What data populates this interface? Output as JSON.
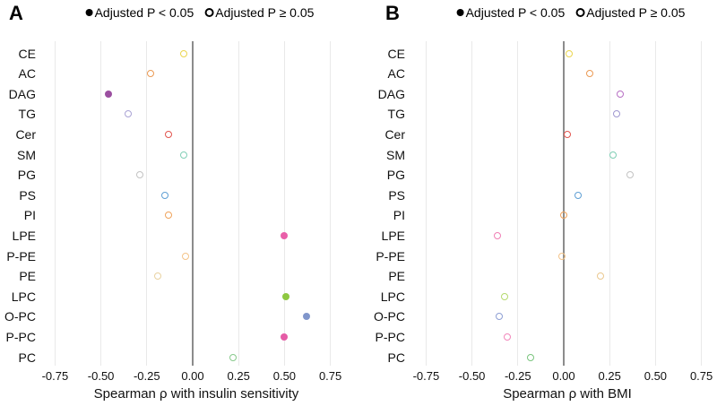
{
  "figure": {
    "background": "#ffffff",
    "grid_color": "#e9e9e9",
    "zero_line_color": "#8c8c8c"
  },
  "chart_data": [
    {
      "type": "scatter",
      "panel_label": "A",
      "legend": {
        "filled_label": "Adjusted P < 0.05",
        "open_label": "Adjusted P ≥ 0.05"
      },
      "title": "",
      "xlabel": "Spearman ρ with insulin sensitivity",
      "ylabel": "",
      "xlim": [
        -0.75,
        0.75
      ],
      "grid": true,
      "legend_position": "top",
      "x_ticks": [
        {
          "value": -0.75,
          "label": "-0.75"
        },
        {
          "value": -0.5,
          "label": "-0.50"
        },
        {
          "value": -0.25,
          "label": "-0.25"
        },
        {
          "value": 0.0,
          "label": "0.00"
        },
        {
          "value": 0.25,
          "label": "0.25"
        },
        {
          "value": 0.5,
          "label": "0.50"
        },
        {
          "value": 0.75,
          "label": "0.75"
        }
      ],
      "categories": [
        "CE",
        "AC",
        "DAG",
        "TG",
        "Cer",
        "SM",
        "PG",
        "PS",
        "PI",
        "LPE",
        "P-PE",
        "PE",
        "LPC",
        "O-PC",
        "P-PC",
        "PC"
      ],
      "points": [
        {
          "category": "CE",
          "rho": -0.05,
          "significant": false,
          "color": "#ebd54e"
        },
        {
          "category": "AC",
          "rho": -0.23,
          "significant": false,
          "color": "#eb9a54"
        },
        {
          "category": "DAG",
          "rho": -0.46,
          "significant": true,
          "color": "#9b4fa0"
        },
        {
          "category": "TG",
          "rho": -0.35,
          "significant": false,
          "color": "#aaa3d5"
        },
        {
          "category": "Cer",
          "rho": -0.13,
          "significant": false,
          "color": "#e2544d"
        },
        {
          "category": "SM",
          "rho": -0.05,
          "significant": false,
          "color": "#82cfb6"
        },
        {
          "category": "PG",
          "rho": -0.29,
          "significant": false,
          "color": "#c3c3c3"
        },
        {
          "category": "PS",
          "rho": -0.15,
          "significant": false,
          "color": "#5f9fd4"
        },
        {
          "category": "PI",
          "rho": -0.13,
          "significant": false,
          "color": "#efa35b"
        },
        {
          "category": "LPE",
          "rho": 0.5,
          "significant": true,
          "color": "#e95fa9"
        },
        {
          "category": "P-PE",
          "rho": -0.04,
          "significant": false,
          "color": "#f4c489"
        },
        {
          "category": "PE",
          "rho": -0.19,
          "significant": false,
          "color": "#e9d2a0"
        },
        {
          "category": "LPC",
          "rho": 0.51,
          "significant": true,
          "color": "#8ec841"
        },
        {
          "category": "O-PC",
          "rho": 0.62,
          "significant": true,
          "color": "#8096cb"
        },
        {
          "category": "P-PC",
          "rho": 0.5,
          "significant": true,
          "color": "#e55ca6"
        },
        {
          "category": "PC",
          "rho": 0.22,
          "significant": false,
          "color": "#87c98b"
        }
      ]
    },
    {
      "type": "scatter",
      "panel_label": "B",
      "legend": {
        "filled_label": "Adjusted P < 0.05",
        "open_label": "Adjusted P ≥ 0.05"
      },
      "title": "",
      "xlabel": "Spearman ρ with BMI",
      "ylabel": "",
      "xlim": [
        -0.75,
        0.75
      ],
      "grid": true,
      "legend_position": "top",
      "x_ticks": [
        {
          "value": -0.75,
          "label": "-0.75"
        },
        {
          "value": -0.5,
          "label": "-0.50"
        },
        {
          "value": -0.25,
          "label": "-0.25"
        },
        {
          "value": 0.0,
          "label": "0.00"
        },
        {
          "value": 0.25,
          "label": "0.25"
        },
        {
          "value": 0.5,
          "label": "0.50"
        },
        {
          "value": 0.75,
          "label": "0.75"
        }
      ],
      "categories": [
        "CE",
        "AC",
        "DAG",
        "TG",
        "Cer",
        "SM",
        "PG",
        "PS",
        "PI",
        "LPE",
        "P-PE",
        "PE",
        "LPC",
        "O-PC",
        "P-PC",
        "PC"
      ],
      "points": [
        {
          "category": "CE",
          "rho": 0.03,
          "significant": false,
          "color": "#ebd54e"
        },
        {
          "category": "AC",
          "rho": 0.14,
          "significant": false,
          "color": "#eb9a54"
        },
        {
          "category": "DAG",
          "rho": 0.31,
          "significant": false,
          "color": "#b76fc4"
        },
        {
          "category": "TG",
          "rho": 0.29,
          "significant": false,
          "color": "#9f97d0"
        },
        {
          "category": "Cer",
          "rho": 0.02,
          "significant": false,
          "color": "#e2544d"
        },
        {
          "category": "SM",
          "rho": 0.27,
          "significant": false,
          "color": "#7fceb4"
        },
        {
          "category": "PG",
          "rho": 0.36,
          "significant": false,
          "color": "#c3c3c3"
        },
        {
          "category": "PS",
          "rho": 0.08,
          "significant": false,
          "color": "#5f9fd4"
        },
        {
          "category": "PI",
          "rho": 0.0,
          "significant": false,
          "color": "#efa35b"
        },
        {
          "category": "LPE",
          "rho": -0.36,
          "significant": false,
          "color": "#f07fb5"
        },
        {
          "category": "P-PE",
          "rho": -0.01,
          "significant": false,
          "color": "#f4c489"
        },
        {
          "category": "PE",
          "rho": 0.2,
          "significant": false,
          "color": "#ebc88f"
        },
        {
          "category": "LPC",
          "rho": -0.32,
          "significant": false,
          "color": "#b5d96e"
        },
        {
          "category": "O-PC",
          "rho": -0.35,
          "significant": false,
          "color": "#8e9fd4"
        },
        {
          "category": "P-PC",
          "rho": -0.31,
          "significant": false,
          "color": "#f287bb"
        },
        {
          "category": "PC",
          "rho": -0.18,
          "significant": false,
          "color": "#79c47d"
        }
      ]
    }
  ]
}
